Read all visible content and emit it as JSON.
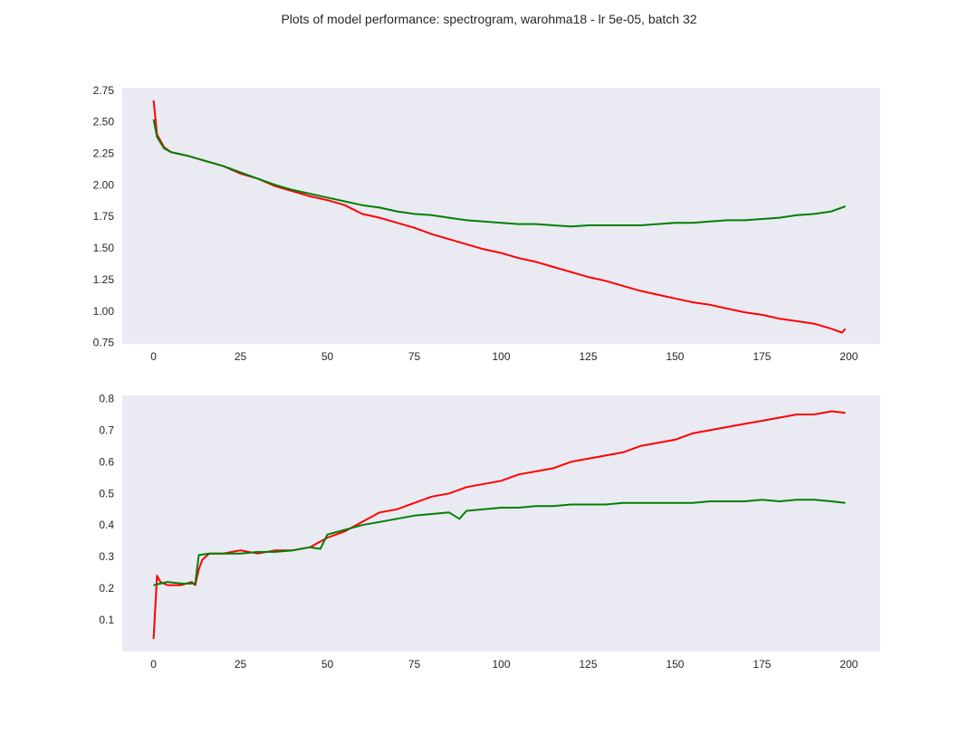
{
  "title": "Plots of model performance: spectrogram, warohma18 - lr 5e-05, batch 32",
  "colors": {
    "background": "#eaeaf2",
    "red": "#ff0000",
    "green": "#008000",
    "text": "#262626"
  },
  "chart_data": [
    {
      "type": "line",
      "grid": false,
      "legend": "none",
      "xlim": [
        -9,
        209
      ],
      "ylim": [
        0.74,
        2.77
      ],
      "xticks": [
        0,
        25,
        50,
        75,
        100,
        125,
        150,
        175,
        200
      ],
      "yticks": [
        0.75,
        1.0,
        1.25,
        1.5,
        1.75,
        2.0,
        2.25,
        2.5,
        2.75
      ],
      "ytick_labels": [
        "0.75",
        "1.00",
        "1.25",
        "1.50",
        "1.75",
        "2.00",
        "2.25",
        "2.50",
        "2.75"
      ],
      "series": [
        {
          "color": "red",
          "x": [
            0,
            1,
            3,
            5,
            10,
            15,
            20,
            25,
            30,
            35,
            40,
            45,
            50,
            55,
            60,
            65,
            70,
            75,
            80,
            85,
            90,
            95,
            100,
            105,
            110,
            115,
            120,
            125,
            130,
            135,
            140,
            145,
            150,
            155,
            160,
            165,
            170,
            175,
            180,
            185,
            190,
            195,
            198,
            199
          ],
          "values": [
            2.67,
            2.4,
            2.3,
            2.26,
            2.23,
            2.19,
            2.15,
            2.09,
            2.05,
            1.99,
            1.95,
            1.91,
            1.88,
            1.84,
            1.77,
            1.74,
            1.7,
            1.66,
            1.61,
            1.57,
            1.53,
            1.49,
            1.46,
            1.42,
            1.39,
            1.35,
            1.31,
            1.27,
            1.24,
            1.2,
            1.16,
            1.13,
            1.1,
            1.07,
            1.05,
            1.02,
            0.99,
            0.97,
            0.94,
            0.92,
            0.9,
            0.86,
            0.83,
            0.86
          ]
        },
        {
          "color": "green",
          "x": [
            0,
            1,
            3,
            5,
            10,
            15,
            20,
            25,
            30,
            35,
            40,
            45,
            50,
            55,
            60,
            65,
            70,
            75,
            80,
            85,
            90,
            95,
            100,
            105,
            110,
            115,
            120,
            125,
            130,
            135,
            140,
            145,
            150,
            155,
            160,
            165,
            170,
            175,
            180,
            185,
            190,
            195,
            199
          ],
          "values": [
            2.52,
            2.38,
            2.29,
            2.26,
            2.23,
            2.19,
            2.15,
            2.1,
            2.05,
            2.0,
            1.96,
            1.93,
            1.9,
            1.87,
            1.84,
            1.82,
            1.79,
            1.77,
            1.76,
            1.74,
            1.72,
            1.71,
            1.7,
            1.69,
            1.69,
            1.68,
            1.67,
            1.68,
            1.68,
            1.68,
            1.68,
            1.69,
            1.7,
            1.7,
            1.71,
            1.72,
            1.72,
            1.73,
            1.74,
            1.76,
            1.77,
            1.79,
            1.83
          ]
        }
      ]
    },
    {
      "type": "line",
      "grid": false,
      "legend": "none",
      "xlim": [
        -9,
        209
      ],
      "ylim": [
        0.0,
        0.81
      ],
      "xticks": [
        0,
        25,
        50,
        75,
        100,
        125,
        150,
        175,
        200
      ],
      "yticks": [
        0.1,
        0.2,
        0.3,
        0.4,
        0.5,
        0.6,
        0.7,
        0.8
      ],
      "ytick_labels": [
        "0.1",
        "0.2",
        "0.3",
        "0.4",
        "0.5",
        "0.6",
        "0.7",
        "0.8"
      ],
      "series": [
        {
          "color": "red",
          "x": [
            0,
            1,
            2,
            4,
            8,
            11,
            12,
            13,
            14,
            16,
            20,
            25,
            30,
            35,
            40,
            45,
            50,
            55,
            60,
            65,
            70,
            75,
            80,
            85,
            90,
            95,
            100,
            105,
            110,
            115,
            120,
            125,
            130,
            135,
            140,
            145,
            150,
            155,
            160,
            165,
            170,
            175,
            180,
            185,
            190,
            195,
            199
          ],
          "values": [
            0.04,
            0.24,
            0.22,
            0.21,
            0.21,
            0.22,
            0.21,
            0.26,
            0.29,
            0.31,
            0.31,
            0.32,
            0.31,
            0.32,
            0.32,
            0.33,
            0.36,
            0.38,
            0.41,
            0.44,
            0.45,
            0.47,
            0.49,
            0.5,
            0.52,
            0.53,
            0.54,
            0.56,
            0.57,
            0.58,
            0.6,
            0.61,
            0.62,
            0.63,
            0.65,
            0.66,
            0.67,
            0.69,
            0.7,
            0.71,
            0.72,
            0.73,
            0.74,
            0.75,
            0.75,
            0.76,
            0.755
          ]
        },
        {
          "color": "green",
          "x": [
            0,
            4,
            8,
            12,
            13,
            16,
            20,
            25,
            30,
            35,
            40,
            45,
            48,
            50,
            55,
            60,
            65,
            70,
            75,
            80,
            85,
            88,
            90,
            95,
            100,
            105,
            110,
            115,
            120,
            125,
            130,
            135,
            140,
            145,
            150,
            155,
            160,
            165,
            170,
            175,
            180,
            185,
            190,
            195,
            199
          ],
          "values": [
            0.21,
            0.22,
            0.215,
            0.215,
            0.305,
            0.31,
            0.31,
            0.31,
            0.315,
            0.315,
            0.32,
            0.33,
            0.325,
            0.37,
            0.385,
            0.4,
            0.41,
            0.42,
            0.43,
            0.435,
            0.44,
            0.42,
            0.445,
            0.45,
            0.455,
            0.455,
            0.46,
            0.46,
            0.465,
            0.465,
            0.465,
            0.47,
            0.47,
            0.47,
            0.47,
            0.47,
            0.475,
            0.475,
            0.475,
            0.48,
            0.475,
            0.48,
            0.48,
            0.475,
            0.47
          ]
        }
      ]
    }
  ]
}
